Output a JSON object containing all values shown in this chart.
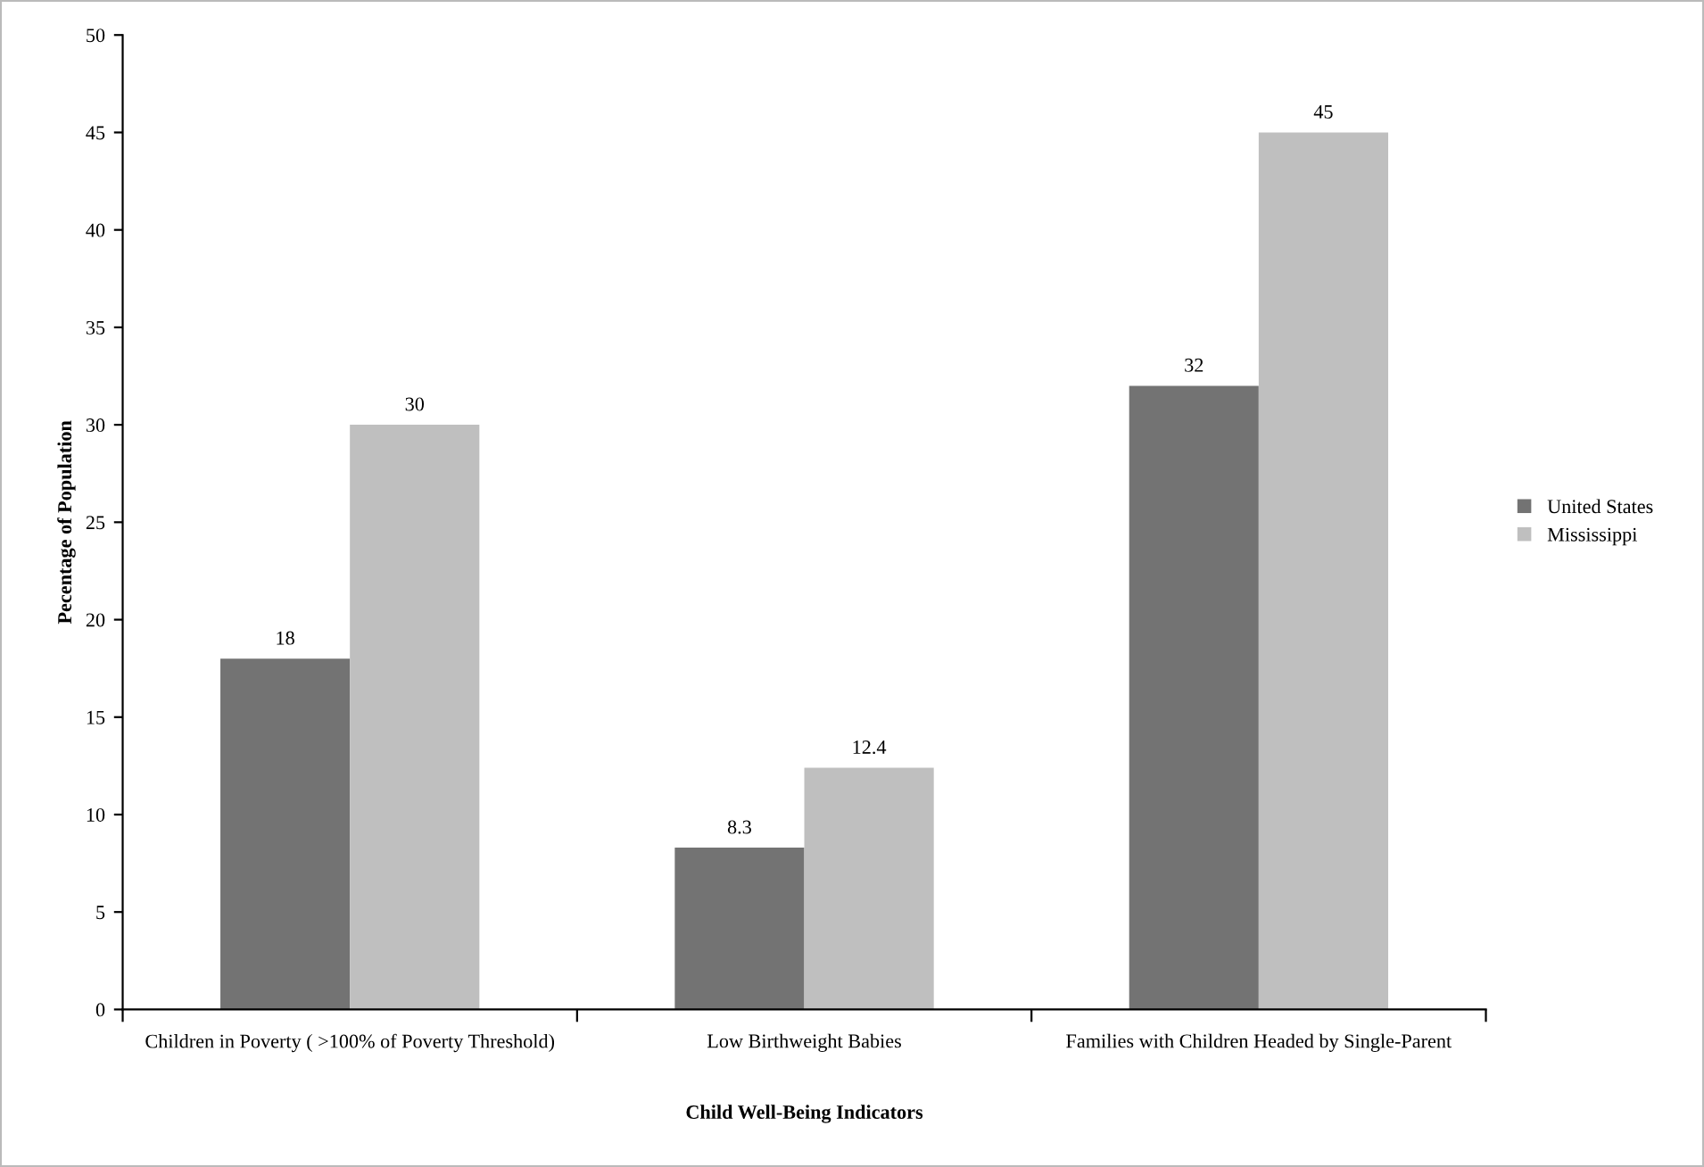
{
  "chart_data": {
    "type": "bar",
    "xlabel": "Child Well-Being Indicators",
    "ylabel": "Pecentage of Population",
    "categories": [
      "Children in Poverty ( >100% of Poverty Threshold)",
      "Low Birthweight Babies",
      "Families with Children Headed by Single-Parent"
    ],
    "series": [
      {
        "name": "United States",
        "color": "#737373",
        "values": [
          18,
          8.3,
          32
        ]
      },
      {
        "name": "Mississippi",
        "color": "#bfbfbf",
        "values": [
          30,
          12.4,
          45
        ]
      }
    ],
    "ylim": [
      0,
      50
    ],
    "yticks": [
      0,
      5,
      10,
      15,
      20,
      25,
      30,
      35,
      40,
      45,
      50
    ],
    "data_labels": true,
    "legend": "right",
    "grid": false
  }
}
